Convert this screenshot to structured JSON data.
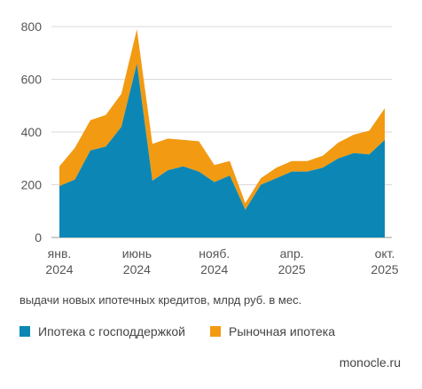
{
  "chart_data": {
    "type": "area",
    "stacked": true,
    "x_months": [
      "2024-01",
      "2024-02",
      "2024-03",
      "2024-04",
      "2024-05",
      "2024-06",
      "2024-07",
      "2024-08",
      "2024-09",
      "2024-10",
      "2024-11",
      "2024-12",
      "2025-01",
      "2025-02",
      "2025-03",
      "2025-04",
      "2025-05",
      "2025-06",
      "2025-07",
      "2025-08",
      "2025-09",
      "2025-10"
    ],
    "x_tick_labels": [
      {
        "x": "2024-01",
        "line1": "янв.",
        "line2": "2024"
      },
      {
        "x": "2024-06",
        "line1": "июнь",
        "line2": "2024"
      },
      {
        "x": "2024-11",
        "line1": "нояб.",
        "line2": "2024"
      },
      {
        "x": "2025-04",
        "line1": "апр.",
        "line2": "2025"
      },
      {
        "x": "2025-10",
        "line1": "окт.",
        "line2": "2025"
      }
    ],
    "y_ticks": [
      0,
      200,
      400,
      600,
      800
    ],
    "ylim": [
      0,
      800
    ],
    "series": [
      {
        "name": "Ипотека с господдержкой",
        "color": "#0c87b5",
        "values": [
          195,
          220,
          330,
          345,
          420,
          660,
          215,
          255,
          270,
          250,
          210,
          235,
          105,
          200,
          225,
          250,
          250,
          265,
          300,
          320,
          315,
          370
        ]
      },
      {
        "name": "Рыночная ипотека",
        "color": "#f29a12",
        "values": [
          75,
          120,
          115,
          120,
          125,
          130,
          140,
          120,
          100,
          115,
          65,
          55,
          25,
          25,
          40,
          40,
          40,
          45,
          60,
          70,
          90,
          120
        ]
      }
    ],
    "grid": "horizontal",
    "legend_position": "bottom-left",
    "caption": "выдачи новых ипотечных кредитов, млрд руб. в мес.",
    "source": "monocle.ru"
  }
}
